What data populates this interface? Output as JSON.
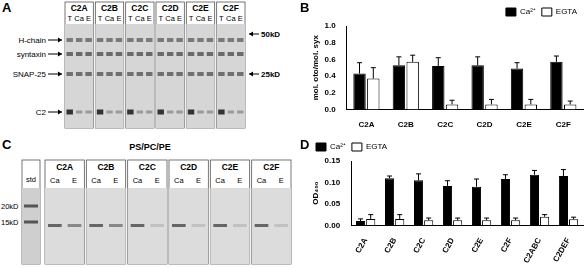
{
  "chart_data": [
    {
      "type": "bar",
      "panel": "B",
      "y_label": "mol. oto/mol. syx",
      "categories": [
        "C2A",
        "C2B",
        "C2C",
        "C2D",
        "C2E",
        "C2F"
      ],
      "series": [
        {
          "name": "Ca²⁺",
          "color": "#000000",
          "values": [
            0.43,
            0.53,
            0.52,
            0.53,
            0.49,
            0.57
          ],
          "errors": [
            0.13,
            0.1,
            0.1,
            0.1,
            0.07,
            0.07
          ]
        },
        {
          "name": "EGTA",
          "color": "#ffffff",
          "values": [
            0.37,
            0.57,
            0.06,
            0.06,
            0.06,
            0.06
          ],
          "errors": [
            0.13,
            0.08,
            0.05,
            0.06,
            0.06,
            0.04
          ]
        }
      ],
      "ylim": [
        0,
        1
      ],
      "yticks": [
        {
          "value": 0,
          "label": "0.0"
        },
        {
          "value": 0.2,
          "label": "0.2"
        },
        {
          "value": 0.4,
          "label": "0.4"
        },
        {
          "value": 0.6,
          "label": "0.6"
        },
        {
          "value": 0.8,
          "label": "0.8"
        },
        {
          "value": 1,
          "label": "1.0"
        }
      ],
      "grid": false,
      "legend": "top-right"
    },
    {
      "type": "bar",
      "panel": "D",
      "y_label": "OD₄₀₀",
      "categories": [
        "C2A",
        "C2B",
        "C2C",
        "C2D",
        "C2E",
        "C2F",
        "C2ABC",
        "C2DEF"
      ],
      "series": [
        {
          "name": "Ca²⁺",
          "color": "#000000",
          "values": [
            0.01,
            0.11,
            0.105,
            0.092,
            0.09,
            0.108,
            0.118,
            0.115
          ],
          "errors": [
            0.005,
            0.005,
            0.015,
            0.012,
            0.018,
            0.01,
            0.01,
            0.015
          ]
        },
        {
          "name": "EGTA",
          "color": "#ffffff",
          "values": [
            0.015,
            0.015,
            0.012,
            0.012,
            0.012,
            0.012,
            0.02,
            0.014
          ],
          "errors": [
            0.01,
            0.01,
            0.005,
            0.005,
            0.005,
            0.005,
            0.005,
            0.005
          ]
        }
      ],
      "ylim": [
        0,
        0.15
      ],
      "yticks": [
        {
          "value": 0,
          "label": "0.00"
        },
        {
          "value": 0.05,
          "label": "0.05"
        },
        {
          "value": 0.1,
          "label": "0.10"
        },
        {
          "value": 0.15,
          "label": "0.15"
        }
      ],
      "grid": false,
      "legend": "top-left"
    }
  ],
  "gels": [
    {
      "panel": "A",
      "lanes": [
        "C2A",
        "C2B",
        "C2C",
        "C2D",
        "C2E",
        "C2F"
      ],
      "sublanes": [
        "T",
        "Ca",
        "E"
      ],
      "left_labels": [
        "H-chain",
        "syntaxin",
        "SNAP-25",
        "C2"
      ],
      "right_labels": [
        "50kD",
        "25kD"
      ]
    },
    {
      "panel": "C",
      "title": "PS/PC/PE",
      "std": "std",
      "lanes": [
        "C2A",
        "C2B",
        "C2C",
        "C2D",
        "C2E",
        "C2F"
      ],
      "sublanes": [
        "Ca",
        "E"
      ],
      "left_labels": [
        "20kD",
        "15kD"
      ]
    }
  ]
}
